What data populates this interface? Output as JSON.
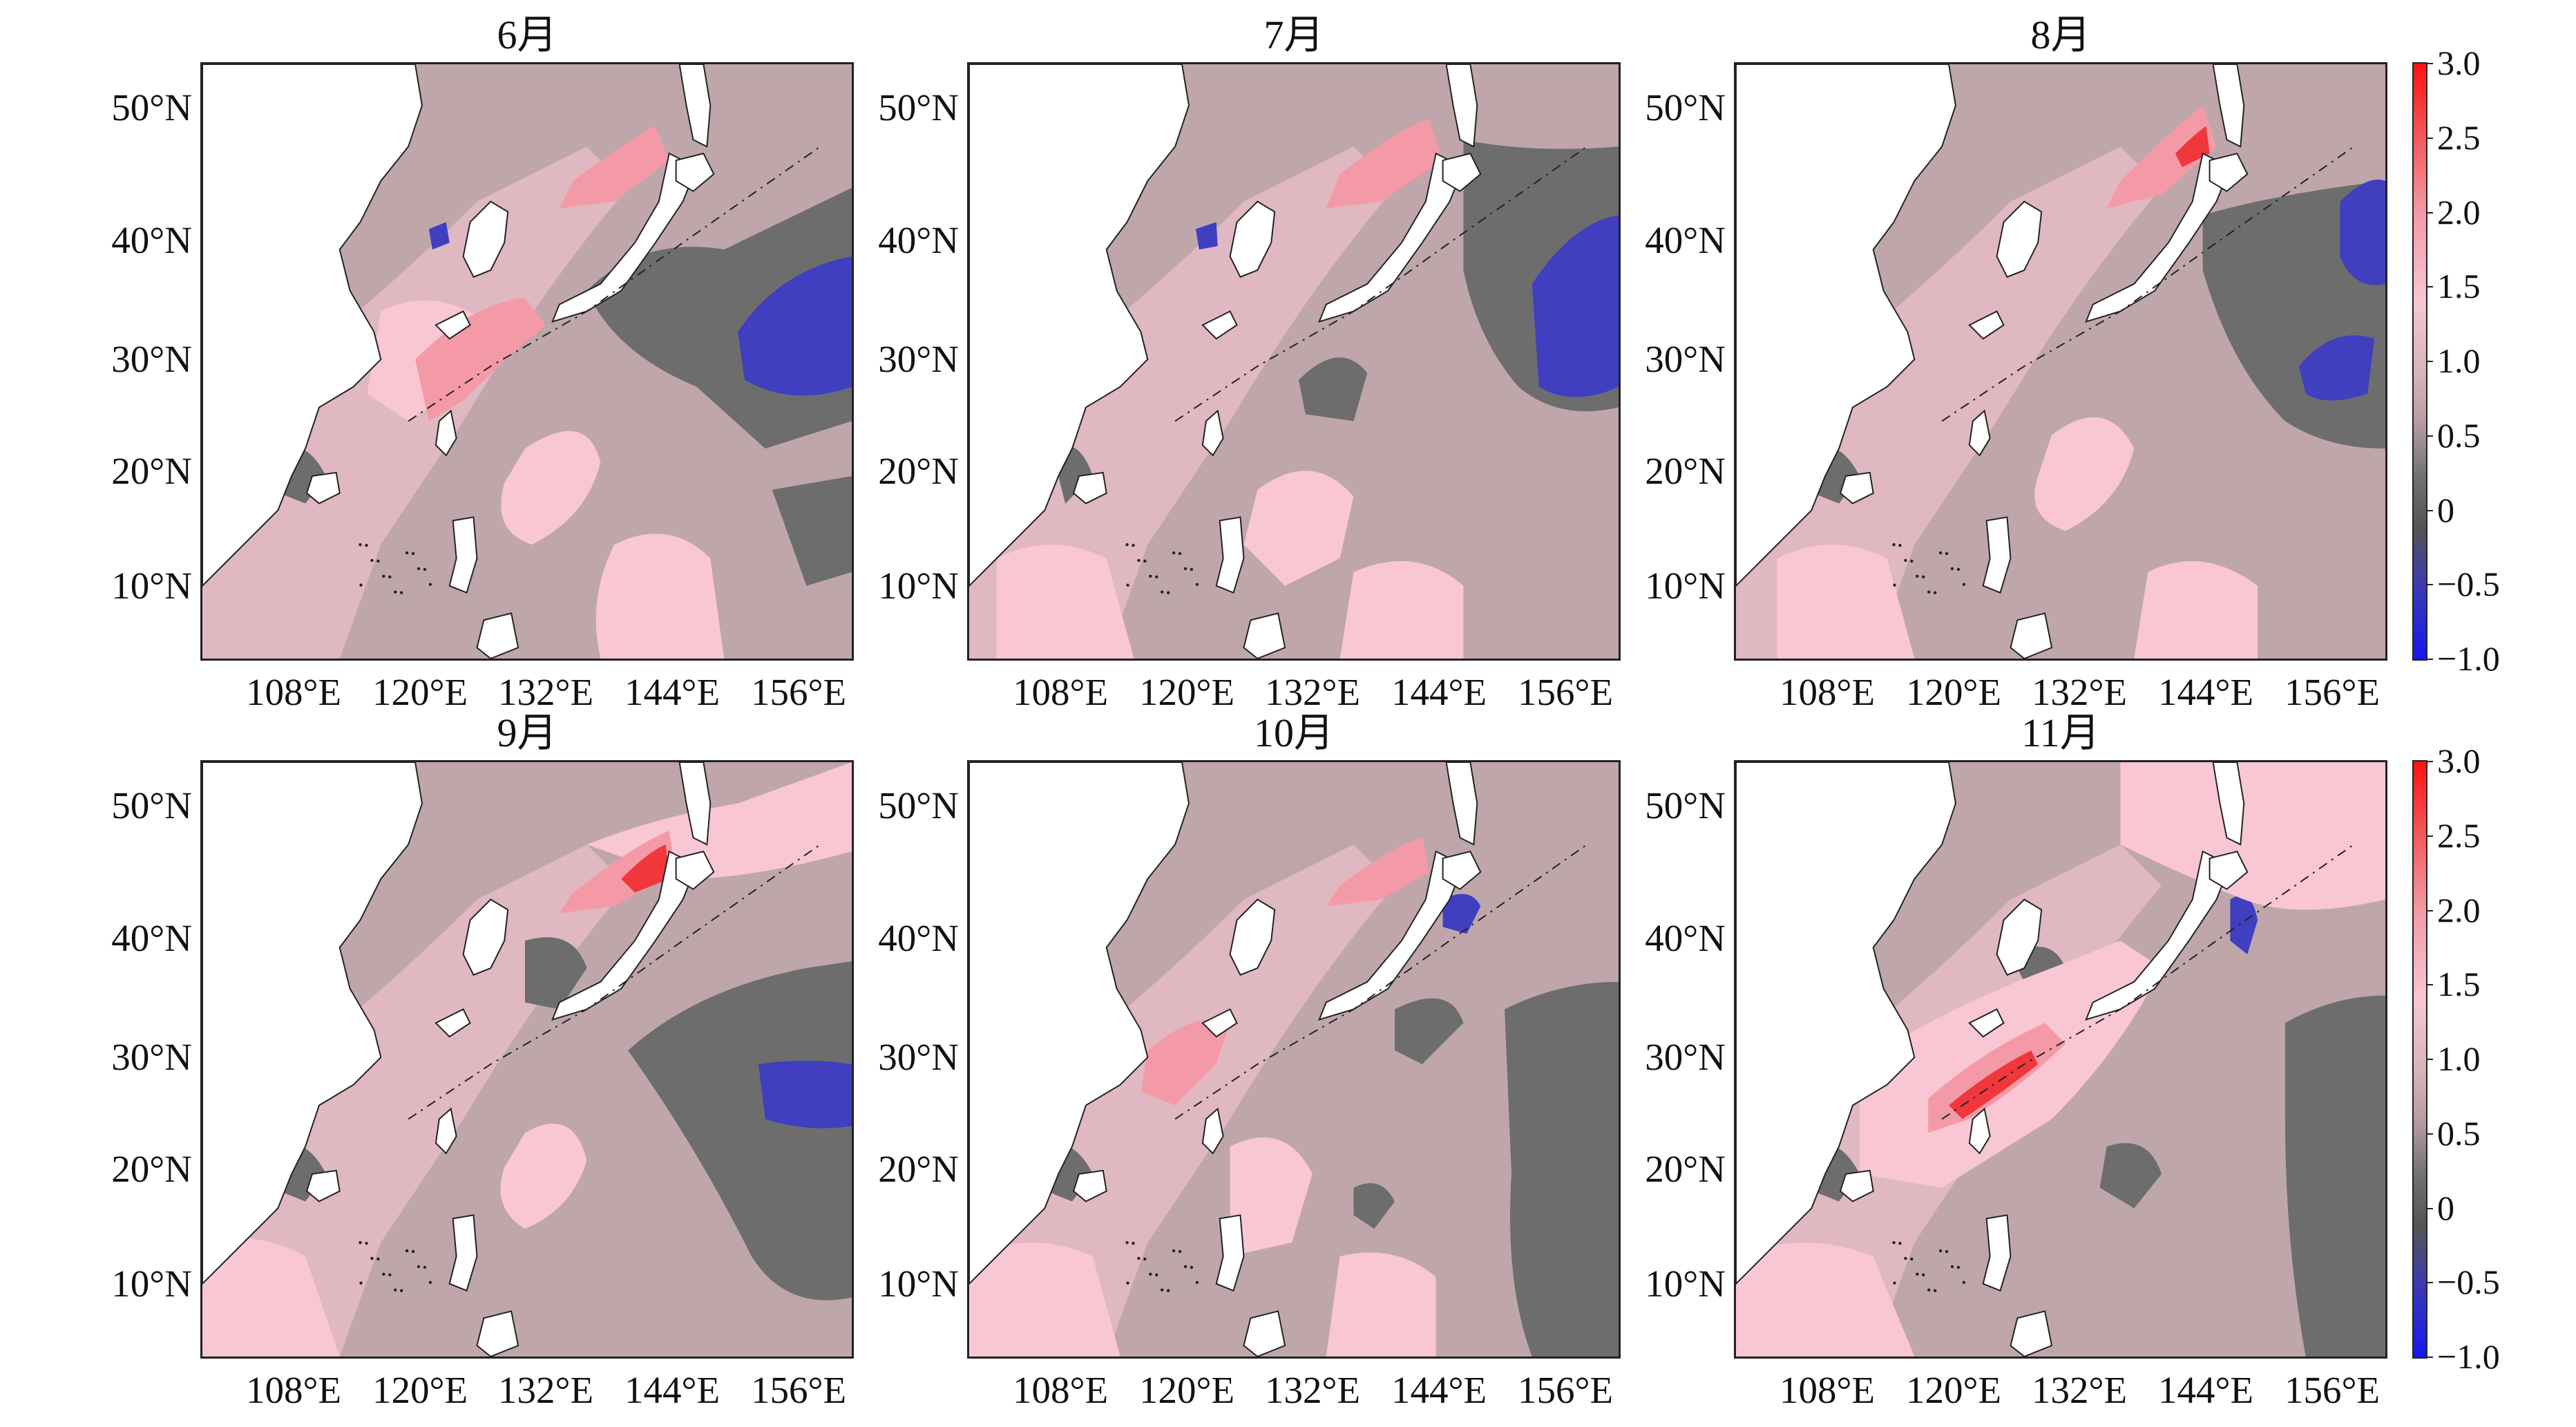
{
  "panels": [
    {
      "id": "p6",
      "title": "6月"
    },
    {
      "id": "p7",
      "title": "7月"
    },
    {
      "id": "p8",
      "title": "8月"
    },
    {
      "id": "p9",
      "title": "9月"
    },
    {
      "id": "p10",
      "title": "10月"
    },
    {
      "id": "p11",
      "title": "11月"
    }
  ],
  "axes": {
    "lat_labels": [
      "50°N",
      "40°N",
      "30°N",
      "20°N",
      "10°N"
    ],
    "lon_labels": [
      "108°E",
      "120°E",
      "132°E",
      "144°E",
      "156°E"
    ]
  },
  "colorbar": {
    "ticks": [
      "3.0",
      "2.5",
      "2.0",
      "1.5",
      "1.0",
      "0.5",
      "0",
      "−0.5",
      "−1.0"
    ],
    "range": [
      -1.0,
      3.0
    ],
    "colors": {
      "strong_positive": "#f0373c",
      "positive": "#f49aa6",
      "weak_positive": "#f9c6d3",
      "near_zero": "#bfa6ab",
      "weak_negative": "#6d6d6d",
      "negative": "#3f3fc0"
    }
  },
  "map_colors": {
    "land": "#ffffff",
    "coastline": "#222222"
  }
}
